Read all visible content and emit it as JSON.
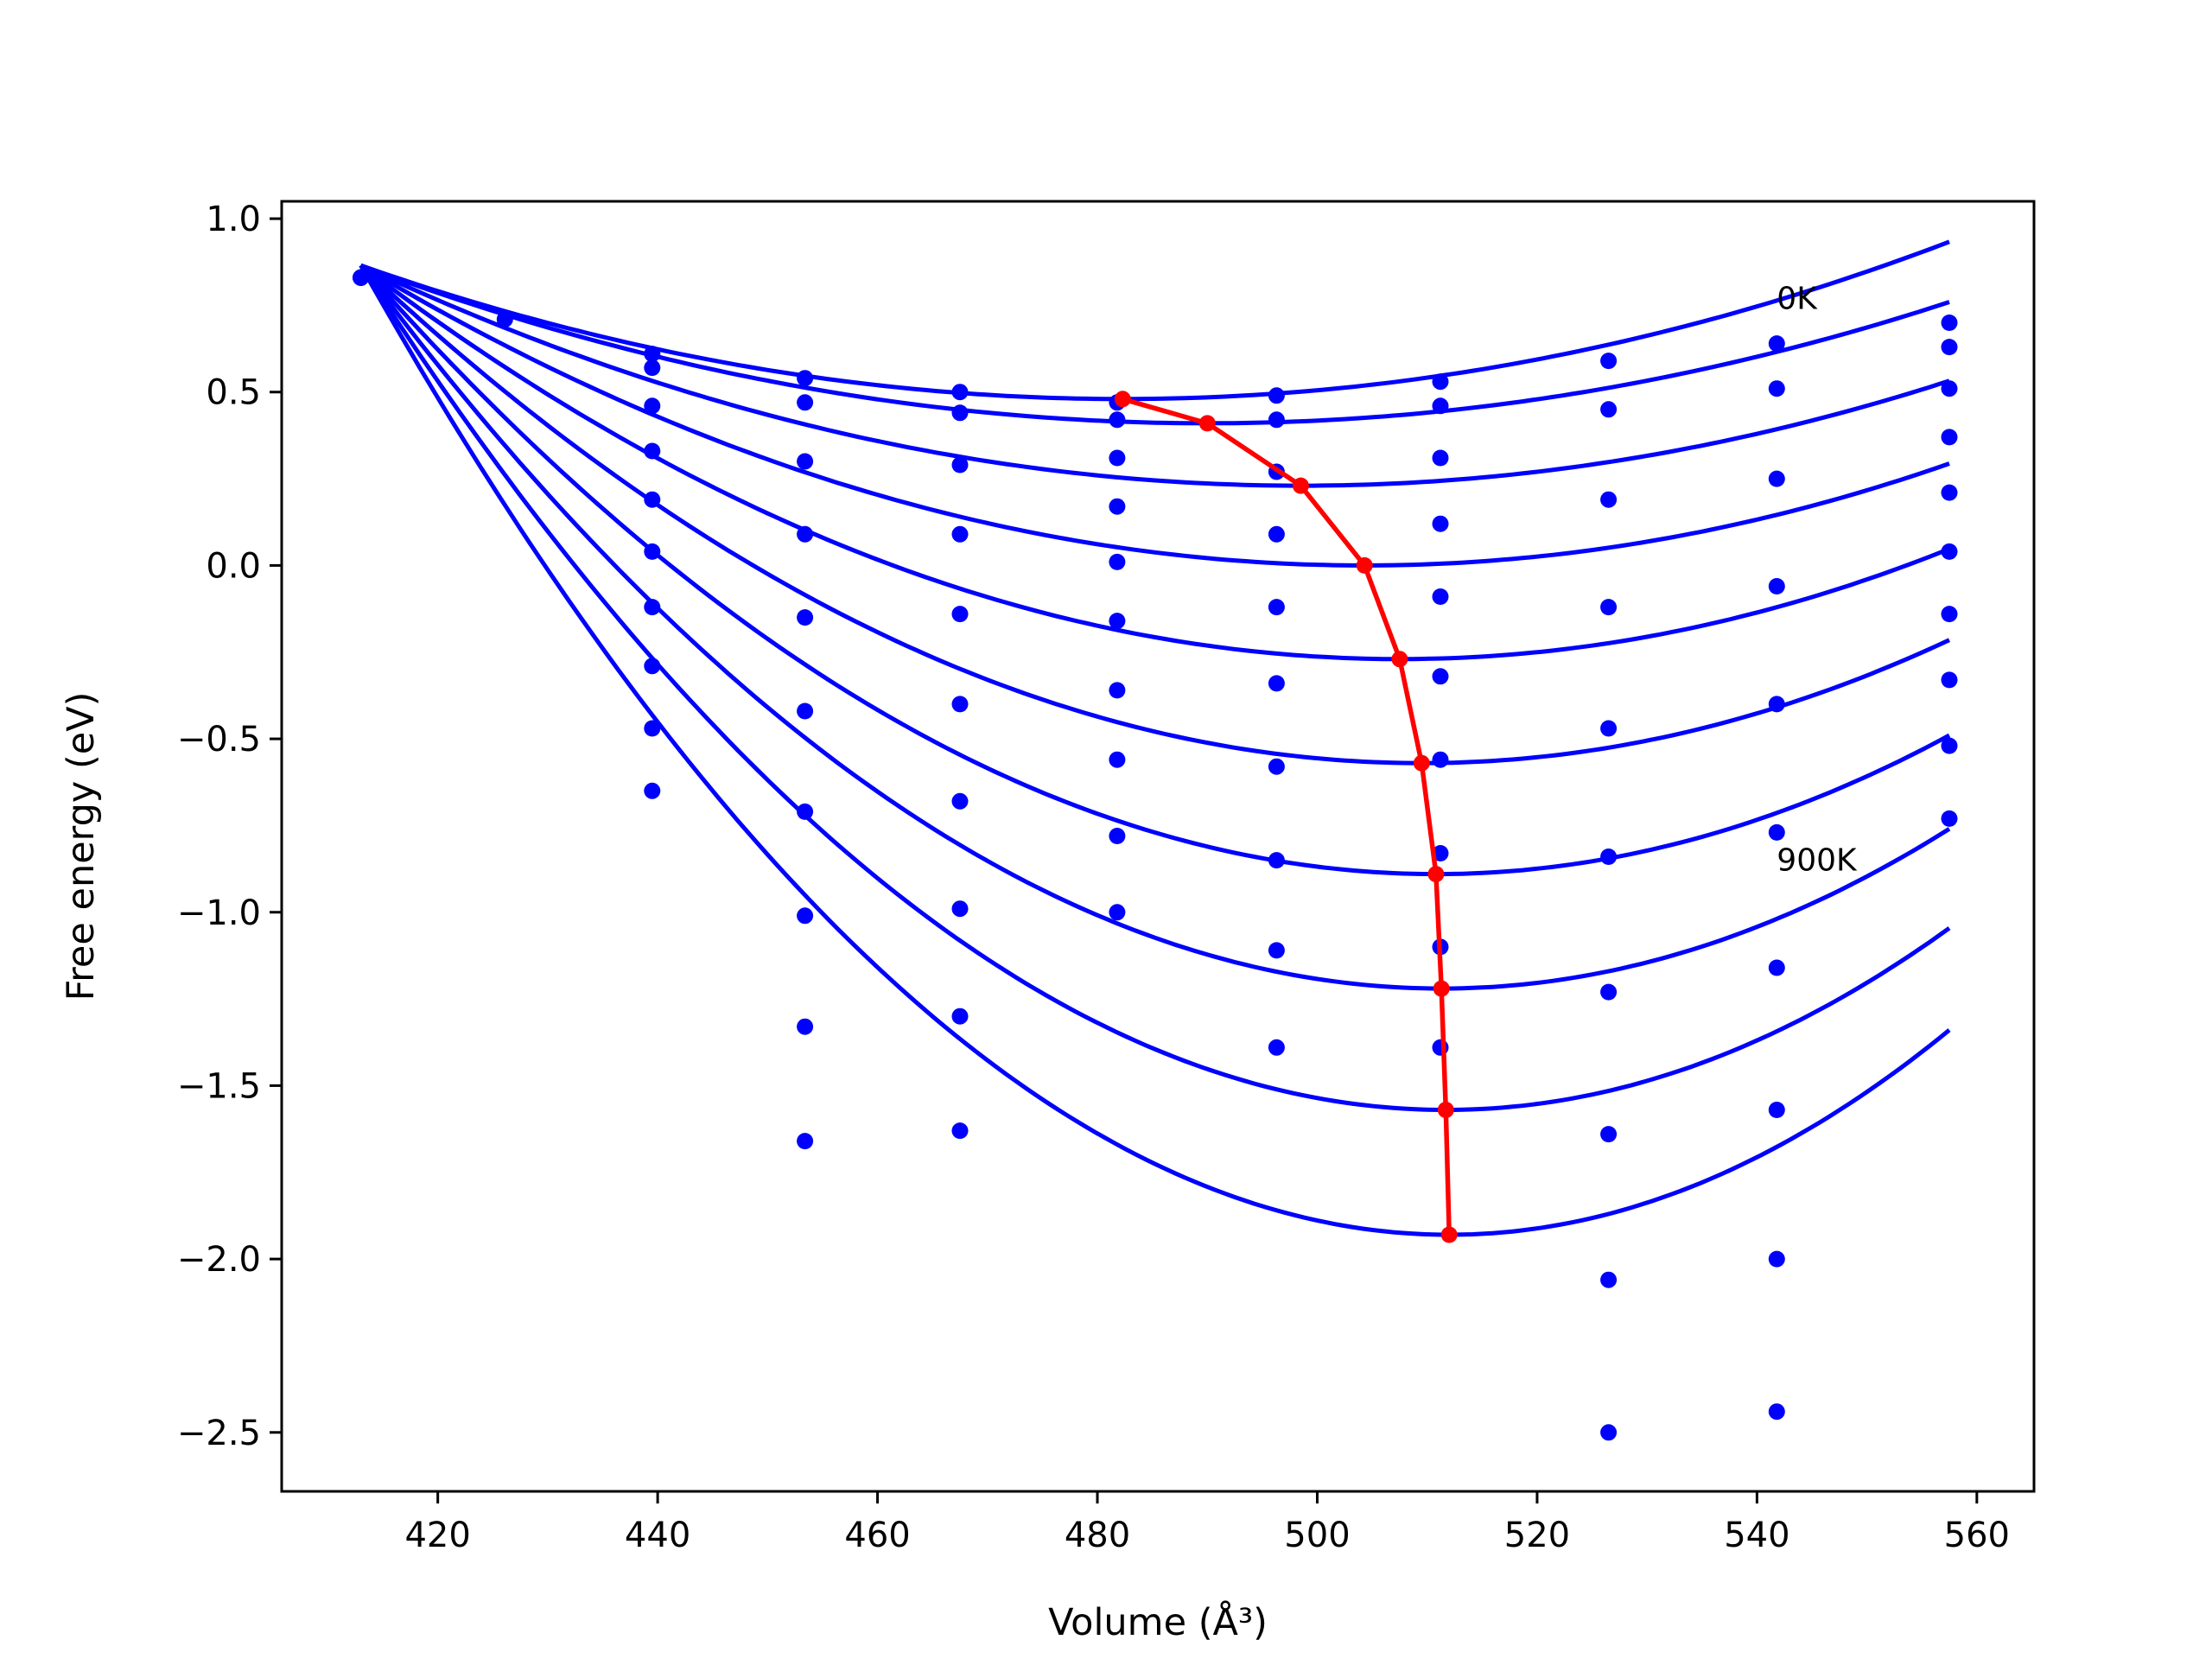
{
  "chart_data": {
    "type": "scatter",
    "xlabel": "Volume (Å³)",
    "ylabel": "Free energy (eV)",
    "xlim": [
      405.8,
      565.2
    ],
    "ylim": [
      -2.67,
      1.05
    ],
    "x_ticks": [
      420,
      440,
      460,
      480,
      500,
      520,
      540,
      560
    ],
    "y_ticks": [
      1.0,
      0.5,
      0.0,
      -0.5,
      -1.0,
      -1.5,
      -2.0,
      -2.5
    ],
    "x_tick_labels": [
      "420",
      "440",
      "460",
      "480",
      "500",
      "520",
      "540",
      "560"
    ],
    "y_tick_labels": [
      "1.0",
      "0.5",
      "0.0",
      "−0.5",
      "−1.0",
      "−1.5",
      "−2.0",
      "−2.5"
    ],
    "grid": false,
    "annotations": [
      {
        "text": "0K",
        "x": 541.8,
        "y": 0.74
      },
      {
        "text": "900K",
        "x": 541.8,
        "y": -0.88
      }
    ],
    "fit_x_range": [
      413,
      557.5
    ],
    "series": [
      {
        "curve": {
          "type": "quadratic",
          "vmin": 482.3,
          "emin": 0.48
        },
        "points": [
          [
            413,
            0.83
          ],
          [
            426.1,
            0.71
          ],
          [
            439.5,
            0.61
          ],
          [
            453.4,
            0.54
          ],
          [
            467.5,
            0.5
          ],
          [
            481.8,
            0.47
          ],
          [
            496.3,
            0.49
          ],
          [
            511.2,
            0.53
          ],
          [
            526.5,
            0.59
          ],
          [
            541.8,
            0.64
          ],
          [
            557.5,
            0.7
          ]
        ]
      },
      {
        "curve": {
          "type": "quadratic",
          "vmin": 490.0,
          "emin": 0.41
        },
        "points": [
          [
            413,
            0.83
          ],
          [
            439.5,
            0.57
          ],
          [
            453.4,
            0.47
          ],
          [
            467.5,
            0.44
          ],
          [
            481.8,
            0.42
          ],
          [
            496.3,
            0.42
          ],
          [
            511.2,
            0.46
          ],
          [
            526.5,
            0.45
          ],
          [
            541.8,
            0.51
          ],
          [
            557.5,
            0.63
          ]
        ]
      },
      {
        "curve": {
          "type": "quadratic",
          "vmin": 498.5,
          "emin": 0.23
        },
        "points": [
          [
            413,
            0.83
          ],
          [
            439.5,
            0.46
          ],
          [
            453.4,
            0.3
          ],
          [
            467.5,
            0.29
          ],
          [
            481.8,
            0.31
          ],
          [
            496.3,
            0.27
          ],
          [
            511.2,
            0.31
          ],
          [
            526.5,
            0.19
          ],
          [
            541.8,
            0.25
          ],
          [
            557.5,
            0.51
          ]
        ]
      },
      {
        "curve": {
          "type": "quadratic",
          "vmin": 504.3,
          "emin": 0.0
        },
        "points": [
          [
            413,
            0.83
          ],
          [
            439.5,
            0.33
          ],
          [
            453.4,
            0.09
          ],
          [
            467.5,
            0.09
          ],
          [
            481.8,
            0.17
          ],
          [
            496.3,
            0.09
          ],
          [
            511.2,
            0.12
          ],
          [
            526.5,
            -0.12
          ],
          [
            541.8,
            -0.06
          ],
          [
            557.5,
            0.37
          ]
        ]
      },
      {
        "curve": {
          "type": "quadratic",
          "vmin": 507.5,
          "emin": -0.27
        },
        "points": [
          [
            413,
            0.83
          ],
          [
            439.5,
            0.19
          ],
          [
            453.4,
            -0.15
          ],
          [
            467.5,
            -0.14
          ],
          [
            481.8,
            0.01
          ],
          [
            496.3,
            -0.12
          ],
          [
            511.2,
            -0.09
          ],
          [
            526.5,
            -0.47
          ],
          [
            541.8,
            -0.4
          ],
          [
            557.5,
            0.21
          ]
        ]
      },
      {
        "curve": {
          "type": "quadratic",
          "vmin": 509.5,
          "emin": -0.57
        },
        "points": [
          [
            413,
            0.83
          ],
          [
            439.5,
            0.04
          ],
          [
            453.4,
            -0.42
          ],
          [
            467.5,
            -0.4
          ],
          [
            481.8,
            -0.16
          ],
          [
            496.3,
            -0.34
          ],
          [
            511.2,
            -0.32
          ],
          [
            526.5,
            -0.84
          ],
          [
            541.8,
            -0.77
          ],
          [
            557.5,
            0.04
          ]
        ]
      },
      {
        "curve": {
          "type": "quadratic",
          "vmin": 510.8,
          "emin": -0.89
        },
        "points": [
          [
            413,
            0.83
          ],
          [
            439.5,
            -0.12
          ],
          [
            453.4,
            -0.71
          ],
          [
            467.5,
            -0.68
          ],
          [
            481.8,
            -0.36
          ],
          [
            496.3,
            -0.58
          ],
          [
            511.2,
            -0.56
          ],
          [
            526.5,
            -1.23
          ],
          [
            541.8,
            -1.16
          ],
          [
            557.5,
            -0.14
          ]
        ]
      },
      {
        "curve": {
          "type": "quadratic",
          "vmin": 511.3,
          "emin": -1.22
        },
        "points": [
          [
            413,
            0.83
          ],
          [
            439.5,
            -0.29
          ],
          [
            453.4,
            -1.01
          ],
          [
            467.5,
            -0.99
          ],
          [
            481.8,
            -0.56
          ],
          [
            496.3,
            -0.85
          ],
          [
            511.2,
            -0.83
          ],
          [
            526.5,
            -1.64
          ],
          [
            541.8,
            -1.57
          ],
          [
            557.5,
            -0.33
          ]
        ]
      },
      {
        "curve": {
          "type": "quadratic",
          "vmin": 511.7,
          "emin": -1.57
        },
        "points": [
          [
            413,
            0.83
          ],
          [
            439.5,
            -0.47
          ],
          [
            453.4,
            -1.33
          ],
          [
            467.5,
            -1.3
          ],
          [
            481.8,
            -0.78
          ],
          [
            496.3,
            -1.11
          ],
          [
            511.2,
            -1.1
          ],
          [
            526.5,
            -2.06
          ],
          [
            541.8,
            -2.0
          ],
          [
            557.5,
            -0.52
          ]
        ]
      },
      {
        "curve": {
          "type": "quadratic",
          "vmin": 512.0,
          "emin": -1.93
        },
        "points": [
          [
            413,
            0.83
          ],
          [
            439.5,
            -0.65
          ],
          [
            453.4,
            -1.66
          ],
          [
            467.5,
            -1.63
          ],
          [
            481.8,
            -1.0
          ],
          [
            496.3,
            -1.39
          ],
          [
            511.2,
            -1.39
          ],
          [
            526.5,
            -2.5
          ],
          [
            541.8,
            -2.44
          ],
          [
            557.5,
            -0.73
          ]
        ]
      }
    ],
    "minimum_path": {
      "points": [
        [
          482.3,
          0.48
        ],
        [
          490.0,
          0.41
        ],
        [
          498.5,
          0.23
        ],
        [
          504.3,
          0.0
        ],
        [
          507.5,
          -0.27
        ],
        [
          509.5,
          -0.57
        ],
        [
          510.8,
          -0.89
        ],
        [
          511.3,
          -1.22
        ],
        [
          511.7,
          -1.57
        ],
        [
          512.0,
          -1.93
        ]
      ]
    },
    "colors": {
      "curves": "#0000ff",
      "minimum_path": "#ff0000",
      "axes": "#000000",
      "background": "#ffffff"
    }
  }
}
